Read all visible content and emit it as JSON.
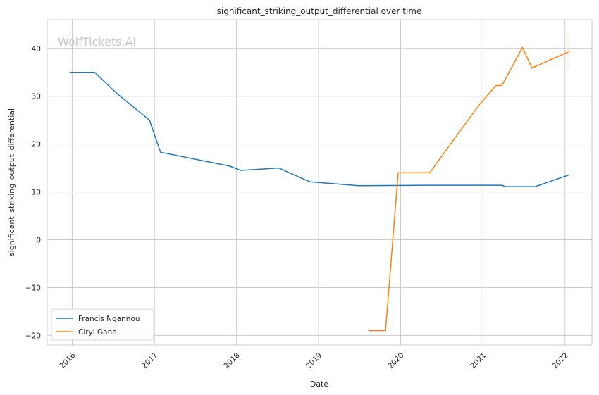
{
  "chart_data": {
    "type": "line",
    "title": "significant_striking_output_differential over time",
    "xlabel": "Date",
    "ylabel": "significant_striking_output_differential",
    "watermark": "WolfTickets.AI",
    "x_ticks": [
      "2016",
      "2017",
      "2018",
      "2019",
      "2020",
      "2021",
      "2022"
    ],
    "y_ticks": [
      "−20",
      "−10",
      "0",
      "10",
      "20",
      "30",
      "40"
    ],
    "ylim": [
      -22,
      46
    ],
    "xlim": [
      "2015-09-12",
      "2022-05-01"
    ],
    "grid": true,
    "legend_position": "lower-left",
    "series": [
      {
        "name": "Francis Ngannou",
        "color": "#1f77b4",
        "points": [
          [
            "2015-12-20",
            35.0
          ],
          [
            "2016-04-10",
            35.0
          ],
          [
            "2016-07-20",
            30.5
          ],
          [
            "2016-12-10",
            25.0
          ],
          [
            "2017-01-28",
            18.3
          ],
          [
            "2017-12-02",
            15.4
          ],
          [
            "2018-01-20",
            14.5
          ],
          [
            "2018-07-07",
            15.0
          ],
          [
            "2018-11-24",
            12.1
          ],
          [
            "2019-06-29",
            11.3
          ],
          [
            "2020-05-09",
            11.4
          ],
          [
            "2021-03-27",
            11.4
          ],
          [
            "2021-04-10",
            11.1
          ],
          [
            "2021-08-21",
            11.1
          ],
          [
            "2022-01-22",
            13.6
          ]
        ]
      },
      {
        "name": "Ciryl Gane",
        "color": "#ff7f0e",
        "points": [
          [
            "2019-08-10",
            -19.0
          ],
          [
            "2019-10-26",
            -19.0
          ],
          [
            "2019-12-21",
            14.0
          ],
          [
            "2020-05-09",
            14.0
          ],
          [
            "2020-12-12",
            28.0
          ],
          [
            "2021-02-27",
            32.2
          ],
          [
            "2021-03-27",
            32.3
          ],
          [
            "2021-06-26",
            40.2
          ],
          [
            "2021-08-07",
            35.9
          ],
          [
            "2022-01-22",
            39.4
          ]
        ]
      }
    ]
  }
}
